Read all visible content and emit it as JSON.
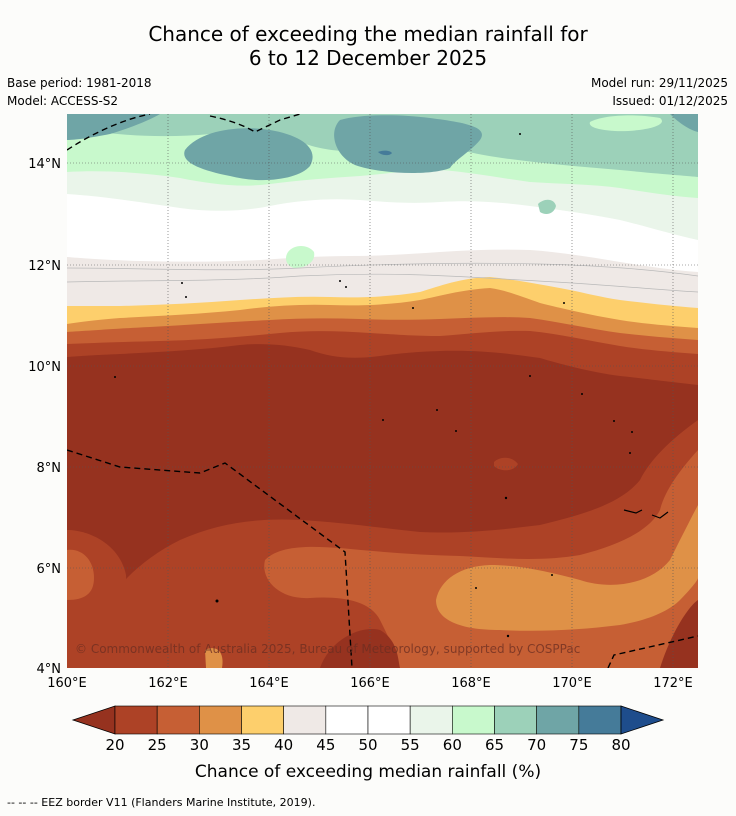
{
  "title": {
    "line1": "Chance of exceeding the median rainfall for",
    "line2": "6 to 12 December 2025"
  },
  "meta": {
    "base_period": "Base period: 1981-2018",
    "model": "Model: ACCESS-S2",
    "model_run": "Model run: 29/11/2025",
    "issued": "Issued: 01/12/2025"
  },
  "map": {
    "lat_labels": [
      "14°N",
      "12°N",
      "10°N",
      "8°N",
      "6°N",
      "4°N"
    ],
    "lon_labels": [
      "160°E",
      "162°E",
      "164°E",
      "166°E",
      "168°E",
      "170°E",
      "172°E"
    ],
    "copyright": "© Commonwealth of Australia 2025, Bureau of Meteorology, supported by COSPPac",
    "colors": {
      "c15": "#96321f",
      "c20": "#ad4226",
      "c25": "#c65f34",
      "c30": "#df9147",
      "c35": "#fdcf6c",
      "c40": "#efe9e6",
      "c45": "#ffffff",
      "c55": "#eaf5ea",
      "c60": "#c8f9cc",
      "c65": "#9cd1b9",
      "c70": "#6fa5a6",
      "c75": "#457b99"
    }
  },
  "colorbar": {
    "labels": [
      "20",
      "25",
      "30",
      "35",
      "40",
      "45",
      "50",
      "55",
      "60",
      "65",
      "70",
      "75",
      "80"
    ],
    "colors": [
      "#ad4226",
      "#c65f34",
      "#df9147",
      "#fdcf6c",
      "#efe9e6",
      "#ffffff",
      "#ffffff",
      "#eaf5ea",
      "#c8f9cc",
      "#9cd1b9",
      "#6fa5a6",
      "#457b99"
    ],
    "low_extend_color": "#96321f",
    "high_extend_color": "#1e4d8c",
    "title": "Chance of exceeding median rainfall (%)"
  },
  "footnote": "--  --  -- EEZ border V11 (Flanders Marine Institute, 2019)."
}
